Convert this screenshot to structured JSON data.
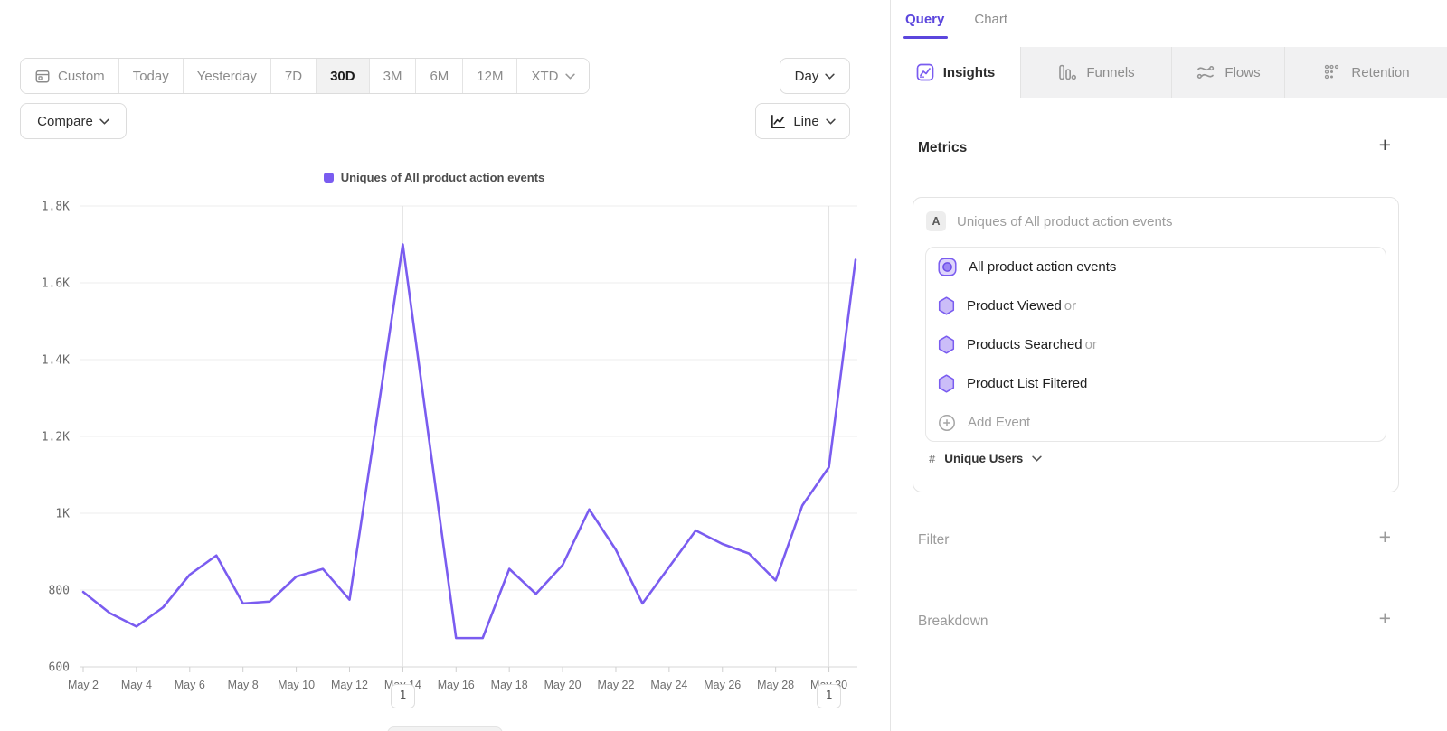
{
  "toolbar": {
    "date_ranges": [
      {
        "label": "Custom"
      },
      {
        "label": "Today"
      },
      {
        "label": "Yesterday"
      },
      {
        "label": "7D"
      },
      {
        "label": "30D",
        "selected": true
      },
      {
        "label": "3M"
      },
      {
        "label": "6M"
      },
      {
        "label": "12M"
      },
      {
        "label": "XTD"
      }
    ],
    "granularity_label": "Day",
    "compare_label": "Compare",
    "chart_type_label": "Line"
  },
  "legend": {
    "series_label": "Uniques of All product action events"
  },
  "chart_data": {
    "type": "line",
    "title": "Uniques of All product action events",
    "categories": [
      "May 2",
      "May 3",
      "May 4",
      "May 5",
      "May 6",
      "May 7",
      "May 8",
      "May 9",
      "May 10",
      "May 11",
      "May 12",
      "May 13",
      "May 14",
      "May 15",
      "May 16",
      "May 17",
      "May 18",
      "May 19",
      "May 20",
      "May 21",
      "May 22",
      "May 23",
      "May 24",
      "May 25",
      "May 26",
      "May 27",
      "May 28",
      "May 29",
      "May 30",
      "May 31"
    ],
    "values": [
      795,
      740,
      705,
      755,
      840,
      890,
      765,
      770,
      835,
      855,
      775,
      1235,
      1700,
      1185,
      675,
      675,
      855,
      790,
      865,
      1010,
      905,
      765,
      860,
      955,
      920,
      895,
      825,
      1020,
      1120,
      1660
    ],
    "xlabel": "",
    "ylabel": "",
    "ylim": [
      600,
      1800
    ],
    "yticks": [
      {
        "label": "600",
        "value": 600
      },
      {
        "label": "800",
        "value": 800
      },
      {
        "label": "1K",
        "value": 1000
      },
      {
        "label": "1.2K",
        "value": 1200
      },
      {
        "label": "1.4K",
        "value": 1400
      },
      {
        "label": "1.6K",
        "value": 1600
      },
      {
        "label": "1.8K",
        "value": 1800
      }
    ],
    "xtick_every": 2,
    "vertical_gridlines": [
      "May 14",
      "May 30"
    ],
    "line_color": "#7a5cf0",
    "grid": "horizontal",
    "legend_position": "top-center"
  },
  "annotations": [
    {
      "label": "1",
      "category": "May 14"
    },
    {
      "label": "1",
      "category": "May 30"
    }
  ],
  "query_panel": {
    "view_tabs": [
      {
        "label": "Query",
        "active": true
      },
      {
        "label": "Chart",
        "active": false
      }
    ],
    "report_tabs": [
      {
        "label": "Insights",
        "active": true
      },
      {
        "label": "Funnels",
        "active": false
      },
      {
        "label": "Flows",
        "active": false
      },
      {
        "label": "Retention",
        "active": false
      }
    ],
    "metrics": {
      "heading": "Metrics",
      "add_icon": "+",
      "group_badge": "A",
      "group_title": "Uniques of All product action events",
      "events": [
        {
          "label": "All product action events",
          "suffix": ""
        },
        {
          "label": "Product Viewed",
          "suffix": "or"
        },
        {
          "label": "Products Searched",
          "suffix": "or"
        },
        {
          "label": "Product List Filtered",
          "suffix": ""
        }
      ],
      "add_event_label": "Add Event",
      "measure": {
        "prefix": "#",
        "label": "Unique Users"
      }
    },
    "sections": [
      {
        "heading": "Filter",
        "add_icon": "+"
      },
      {
        "heading": "Breakdown",
        "add_icon": "+"
      }
    ]
  },
  "colors": {
    "accent_purple": "#7a5cf0",
    "query_tab_purple": "#5b46dd",
    "selected_range_bg": "#f2f2f2",
    "muted_text": "#8b8b8b"
  }
}
